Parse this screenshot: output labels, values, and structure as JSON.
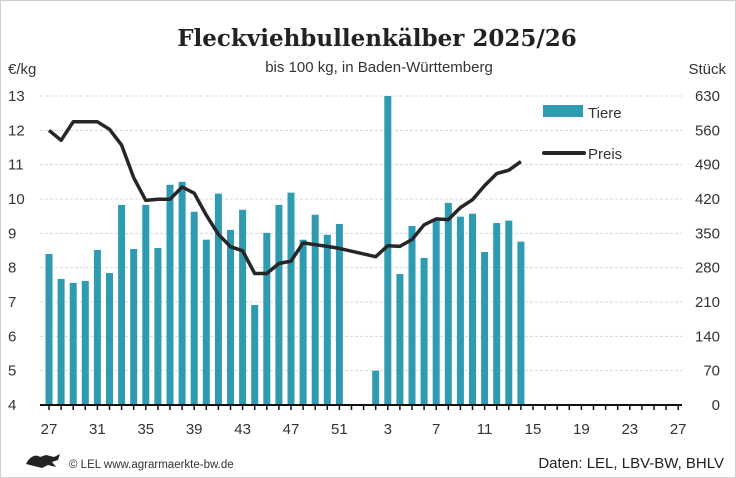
{
  "chart_data": {
    "type": "bar+line",
    "title": "Fleckviehbullenkälber 2025/26",
    "subtitle": "bis 100 kg, in Baden-Württemberg",
    "ylabel_left": "€/kg",
    "ylabel_right": "Stück",
    "ylim_left": [
      4,
      13
    ],
    "ylim_right": [
      0,
      630
    ],
    "yticks_left": [
      "4",
      "5",
      "6",
      "7",
      "8",
      "9",
      "10",
      "11",
      "12",
      "13"
    ],
    "yticks_right": [
      "0",
      "70",
      "140",
      "210",
      "280",
      "350",
      "420",
      "490",
      "560",
      "630"
    ],
    "xticks": [
      "27",
      "31",
      "35",
      "39",
      "43",
      "47",
      "51",
      "3",
      "7",
      "11",
      "15",
      "19",
      "23",
      "27"
    ],
    "grid": true,
    "legend_position": "top-right",
    "weeks": [
      27,
      28,
      29,
      30,
      31,
      32,
      33,
      34,
      35,
      36,
      37,
      38,
      39,
      40,
      41,
      42,
      43,
      44,
      45,
      46,
      47,
      48,
      49,
      50,
      51,
      52,
      1,
      2,
      3,
      4,
      5,
      6,
      7,
      8,
      9,
      10,
      11,
      12,
      13,
      14,
      15,
      16,
      17,
      18,
      19,
      20,
      21,
      22,
      23,
      24,
      25,
      26,
      27
    ],
    "series": [
      {
        "name": "Tiere",
        "type": "bar",
        "axis": "right",
        "color": "#2f9bb0",
        "values": [
          308,
          257,
          249,
          253,
          316,
          269,
          408,
          318,
          408,
          320,
          449,
          455,
          394,
          337,
          431,
          357,
          398,
          204,
          351,
          408,
          433,
          337,
          388,
          347,
          369,
          null,
          null,
          70,
          630,
          267,
          365,
          300,
          376,
          412,
          384,
          390,
          312,
          371,
          376,
          333,
          null,
          null,
          null,
          null,
          null,
          null,
          null,
          null,
          null,
          null,
          null,
          null,
          null
        ]
      },
      {
        "name": "Preis",
        "type": "line",
        "axis": "left",
        "color": "#262626",
        "values": [
          12.0,
          11.71,
          12.25,
          12.25,
          12.25,
          12.03,
          11.57,
          10.62,
          9.96,
          9.99,
          9.99,
          10.35,
          10.17,
          9.53,
          8.97,
          8.61,
          8.49,
          7.83,
          7.83,
          8.12,
          8.19,
          8.72,
          8.67,
          8.62,
          8.56,
          null,
          null,
          8.32,
          8.64,
          8.62,
          8.82,
          9.25,
          9.42,
          9.4,
          9.75,
          9.98,
          10.39,
          10.74,
          10.84,
          11.09,
          null,
          null,
          null,
          null,
          null,
          null,
          null,
          null,
          null,
          null,
          null,
          null,
          null
        ]
      }
    ]
  },
  "footer": {
    "copyright": "© LEL www.agrarmaerkte-bw.de",
    "source": "Daten: LEL, LBV-BW, BHLV",
    "logo": "Baden-Württemberg lion"
  }
}
